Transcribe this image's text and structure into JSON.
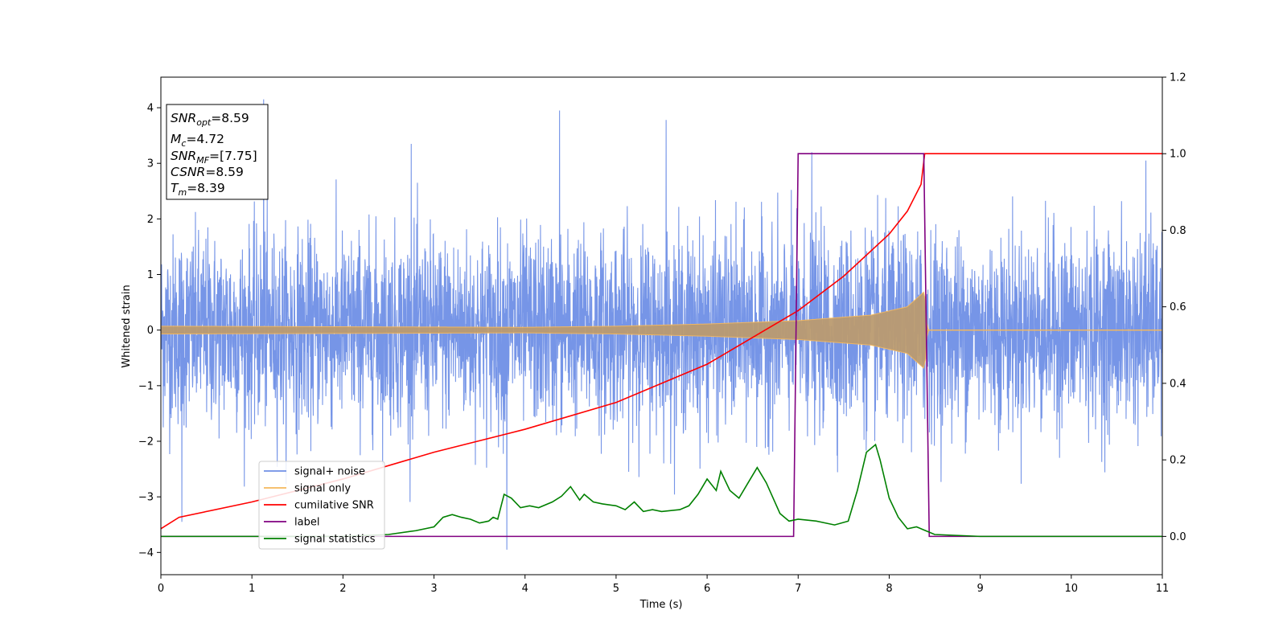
{
  "chart_data": {
    "type": "line",
    "title": "",
    "xlabel": "Time (s)",
    "ylabel": "Whitened strain",
    "xlim": [
      0,
      11
    ],
    "ylim": [
      -4.4,
      4.55
    ],
    "ylim_right": [
      -0.1,
      1.2
    ],
    "x_ticks": [
      0,
      1,
      2,
      3,
      4,
      5,
      6,
      7,
      8,
      9,
      10,
      11
    ],
    "y_ticks": [
      -4,
      -3,
      -2,
      -1,
      0,
      1,
      2,
      3,
      4
    ],
    "y_ticks_right": [
      "0.0",
      "0.2",
      "0.4",
      "0.6",
      "0.8",
      "1.0",
      "1.2"
    ],
    "grid": false,
    "legend_position": "lower-left",
    "colors": {
      "signal_noise": "#6f8fe6",
      "signal_only": "#f5b85c",
      "cumulative_snr": "#ff0000",
      "label": "#800080",
      "signal_statistics": "#008000"
    },
    "annotation_box": {
      "lines": [
        {
          "var": "SNR",
          "sub": "opt",
          "value": "=8.59"
        },
        {
          "var": "M",
          "sub": "c",
          "value": "=4.72"
        },
        {
          "var": "SNR",
          "sub": "MF",
          "value": "=[7.75]"
        },
        {
          "var": "CSNR",
          "sub": "",
          "value": "=8.59"
        },
        {
          "var": "T",
          "sub": "m",
          "value": "=8.39"
        }
      ]
    },
    "series": [
      {
        "name": "signal+ noise",
        "axis": "left",
        "description_values": "noise band approx +/-2.3 with spikes",
        "spikes": [
          [
            1.13,
            4.15
          ],
          [
            4.38,
            3.95
          ],
          [
            5.55,
            3.78
          ],
          [
            3.8,
            -3.95
          ],
          [
            0.23,
            -3.45
          ],
          [
            10.82,
            3.05
          ],
          [
            7.15,
            3.2
          ],
          [
            2.75,
            3.35
          ]
        ]
      },
      {
        "name": "signal only",
        "axis": "left",
        "envelope": [
          [
            0,
            0.07
          ],
          [
            2,
            0.06
          ],
          [
            4,
            0.05
          ],
          [
            5,
            0.07
          ],
          [
            6,
            0.11
          ],
          [
            7,
            0.17
          ],
          [
            7.8,
            0.27
          ],
          [
            8.2,
            0.42
          ],
          [
            8.39,
            0.7
          ],
          [
            8.42,
            0.0
          ],
          [
            11,
            0.0
          ]
        ]
      },
      {
        "name": "cumilative SNR",
        "axis": "right",
        "points": [
          [
            0,
            0.02
          ],
          [
            0.2,
            0.05
          ],
          [
            1,
            0.09
          ],
          [
            2,
            0.15
          ],
          [
            3,
            0.22
          ],
          [
            4,
            0.28
          ],
          [
            5,
            0.35
          ],
          [
            6,
            0.45
          ],
          [
            7,
            0.59
          ],
          [
            7.5,
            0.68
          ],
          [
            8.0,
            0.79
          ],
          [
            8.2,
            0.85
          ],
          [
            8.35,
            0.92
          ],
          [
            8.39,
            1.0
          ],
          [
            11,
            1.0
          ]
        ]
      },
      {
        "name": "label",
        "axis": "right",
        "points": [
          [
            0,
            0.0
          ],
          [
            6.95,
            0.0
          ],
          [
            7.0,
            1.0
          ],
          [
            8.38,
            1.0
          ],
          [
            8.44,
            0.0
          ],
          [
            11,
            0.0
          ]
        ]
      },
      {
        "name": "signal statistics",
        "axis": "right",
        "points": [
          [
            0,
            0.0
          ],
          [
            2.0,
            0.0
          ],
          [
            2.5,
            0.005
          ],
          [
            2.8,
            0.015
          ],
          [
            3.0,
            0.025
          ],
          [
            3.1,
            0.05
          ],
          [
            3.2,
            0.057
          ],
          [
            3.3,
            0.05
          ],
          [
            3.4,
            0.045
          ],
          [
            3.5,
            0.035
          ],
          [
            3.6,
            0.04
          ],
          [
            3.65,
            0.05
          ],
          [
            3.7,
            0.045
          ],
          [
            3.77,
            0.11
          ],
          [
            3.85,
            0.1
          ],
          [
            3.95,
            0.075
          ],
          [
            4.05,
            0.08
          ],
          [
            4.15,
            0.075
          ],
          [
            4.3,
            0.09
          ],
          [
            4.4,
            0.105
          ],
          [
            4.5,
            0.13
          ],
          [
            4.6,
            0.095
          ],
          [
            4.65,
            0.11
          ],
          [
            4.75,
            0.09
          ],
          [
            4.85,
            0.085
          ],
          [
            5.0,
            0.08
          ],
          [
            5.1,
            0.07
          ],
          [
            5.2,
            0.09
          ],
          [
            5.3,
            0.065
          ],
          [
            5.4,
            0.07
          ],
          [
            5.5,
            0.065
          ],
          [
            5.7,
            0.07
          ],
          [
            5.8,
            0.08
          ],
          [
            5.9,
            0.11
          ],
          [
            6.0,
            0.15
          ],
          [
            6.1,
            0.12
          ],
          [
            6.15,
            0.17
          ],
          [
            6.25,
            0.12
          ],
          [
            6.35,
            0.1
          ],
          [
            6.45,
            0.14
          ],
          [
            6.55,
            0.18
          ],
          [
            6.65,
            0.14
          ],
          [
            6.8,
            0.06
          ],
          [
            6.9,
            0.04
          ],
          [
            7.0,
            0.045
          ],
          [
            7.2,
            0.04
          ],
          [
            7.4,
            0.03
          ],
          [
            7.55,
            0.04
          ],
          [
            7.65,
            0.12
          ],
          [
            7.75,
            0.22
          ],
          [
            7.85,
            0.24
          ],
          [
            7.9,
            0.2
          ],
          [
            8.0,
            0.1
          ],
          [
            8.1,
            0.05
          ],
          [
            8.2,
            0.02
          ],
          [
            8.3,
            0.025
          ],
          [
            8.4,
            0.015
          ],
          [
            8.5,
            0.005
          ],
          [
            9.0,
            0.0
          ],
          [
            11,
            0.0
          ]
        ]
      }
    ]
  }
}
